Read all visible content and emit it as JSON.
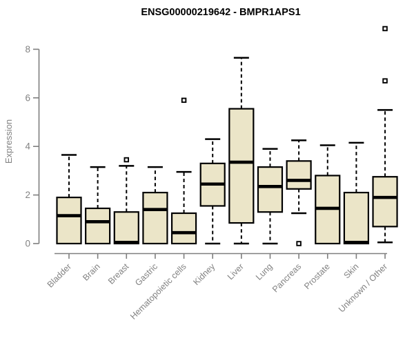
{
  "chart_data": {
    "type": "boxplot",
    "title": "ENSG00000219642 - BMPR1APS1",
    "ylabel": "Expression",
    "xlabel": "",
    "ylim": [
      0,
      8.9
    ],
    "yticks": [
      0,
      2,
      4,
      6,
      8
    ],
    "grid": false,
    "legend": null,
    "categories": [
      "Bladder",
      "Brain",
      "Breast",
      "Gastric",
      "Hematopoietic cells",
      "Kidney",
      "Liver",
      "Lung",
      "Pancreas",
      "Prostate",
      "Skin",
      "Unknown / Other"
    ],
    "series": [
      {
        "name": "Bladder",
        "low": 0,
        "q1": 0,
        "median": 1.15,
        "q3": 1.9,
        "high": 3.65,
        "outliers": []
      },
      {
        "name": "Brain",
        "low": 0,
        "q1": 0,
        "median": 0.9,
        "q3": 1.45,
        "high": 3.15,
        "outliers": []
      },
      {
        "name": "Breast",
        "low": 0,
        "q1": 0,
        "median": 0.05,
        "q3": 1.3,
        "high": 3.2,
        "outliers": [
          3.45
        ]
      },
      {
        "name": "Gastric",
        "low": 0,
        "q1": 0,
        "median": 1.4,
        "q3": 2.1,
        "high": 3.15,
        "outliers": []
      },
      {
        "name": "Hematopoietic cells",
        "low": 0,
        "q1": 0,
        "median": 0.45,
        "q3": 1.25,
        "high": 2.95,
        "outliers": [
          5.9
        ]
      },
      {
        "name": "Kidney",
        "low": 0,
        "q1": 1.55,
        "median": 2.45,
        "q3": 3.3,
        "high": 4.3,
        "outliers": []
      },
      {
        "name": "Liver",
        "low": 0,
        "q1": 0.85,
        "median": 3.35,
        "q3": 5.55,
        "high": 7.65,
        "outliers": []
      },
      {
        "name": "Lung",
        "low": 0,
        "q1": 1.3,
        "median": 2.35,
        "q3": 3.15,
        "high": 3.9,
        "outliers": []
      },
      {
        "name": "Pancreas",
        "low": 1.25,
        "q1": 2.25,
        "median": 2.6,
        "q3": 3.4,
        "high": 4.25,
        "outliers": [
          0.0
        ]
      },
      {
        "name": "Prostate",
        "low": 0,
        "q1": 0,
        "median": 1.45,
        "q3": 2.8,
        "high": 4.05,
        "outliers": []
      },
      {
        "name": "Skin",
        "low": 0,
        "q1": 0,
        "median": 0.05,
        "q3": 2.1,
        "high": 4.15,
        "outliers": []
      },
      {
        "name": "Unknown / Other",
        "low": 0.05,
        "q1": 0.7,
        "median": 1.9,
        "q3": 2.75,
        "high": 5.5,
        "outliers": [
          6.7,
          8.85
        ]
      }
    ],
    "colors": {
      "box_fill": "#EBE5C8",
      "box_stroke": "#000000",
      "median": "#000000",
      "whisker": "#000000",
      "outlier_stroke": "#000000",
      "outlier_fill": "#FFFFFF",
      "axis": "#7E7E7E",
      "tick_label": "#828282",
      "title": "#000000",
      "background": "#FFFFFF"
    }
  }
}
